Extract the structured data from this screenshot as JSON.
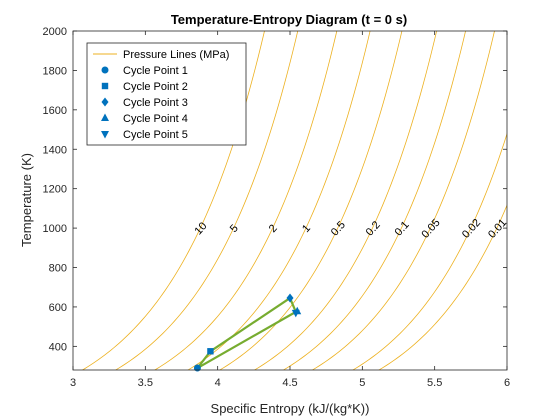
{
  "chart_data": {
    "type": "line",
    "title": "Temperature-Entropy Diagram (t = 0 s)",
    "xlabel": "Specific Entropy (kJ/(kg*K))",
    "ylabel": "Temperature (K)",
    "xlim": [
      3,
      6
    ],
    "ylim": [
      280,
      2000
    ],
    "xticks": [
      "3",
      "3.5",
      "4",
      "4.5",
      "5",
      "5.5",
      "6"
    ],
    "yticks": [
      "400",
      "600",
      "800",
      "1000",
      "1200",
      "1400",
      "1600",
      "1800",
      "2000"
    ],
    "grid": false,
    "legend_location": "top-left",
    "colors": {
      "isobar": "#EDB120",
      "cycle": "#77AC30",
      "marker": "#0072BD",
      "axis": "#262626"
    },
    "isobars": {
      "legend_label": "Pressure Lines (MPa)",
      "reference": {
        "s": 4.95,
        "T": 1000
      },
      "labels": [
        {
          "text": "10",
          "s_at_1000K": 3.88
        },
        {
          "text": "5",
          "s_at_1000K": 4.11
        },
        {
          "text": "2",
          "s_at_1000K": 4.38
        },
        {
          "text": "1",
          "s_at_1000K": 4.61
        },
        {
          "text": "0.5",
          "s_at_1000K": 4.83
        },
        {
          "text": "0.2",
          "s_at_1000K": 5.07
        },
        {
          "text": "0.1",
          "s_at_1000K": 5.27
        },
        {
          "text": "0.05",
          "s_at_1000K": 5.47
        },
        {
          "text": "0.02",
          "s_at_1000K": 5.75
        },
        {
          "text": "0.01",
          "s_at_1000K": 5.93
        }
      ]
    },
    "cycle_path": [
      {
        "s": 3.86,
        "T": 290
      },
      {
        "s": 3.95,
        "T": 375
      },
      {
        "s": 4.5,
        "T": 645
      },
      {
        "s": 4.54,
        "T": 575
      },
      {
        "s": 3.86,
        "T": 290
      }
    ],
    "points": [
      {
        "name": "Cycle Point 1",
        "marker": "circle",
        "s": 3.86,
        "T": 290
      },
      {
        "name": "Cycle Point 2",
        "marker": "square",
        "s": 3.95,
        "T": 375
      },
      {
        "name": "Cycle Point 3",
        "marker": "diamond",
        "s": 4.5,
        "T": 645
      },
      {
        "name": "Cycle Point 4",
        "marker": "triangle-up",
        "s": 4.55,
        "T": 578
      },
      {
        "name": "Cycle Point 5",
        "marker": "triangle-down",
        "s": 4.54,
        "T": 570
      }
    ]
  }
}
